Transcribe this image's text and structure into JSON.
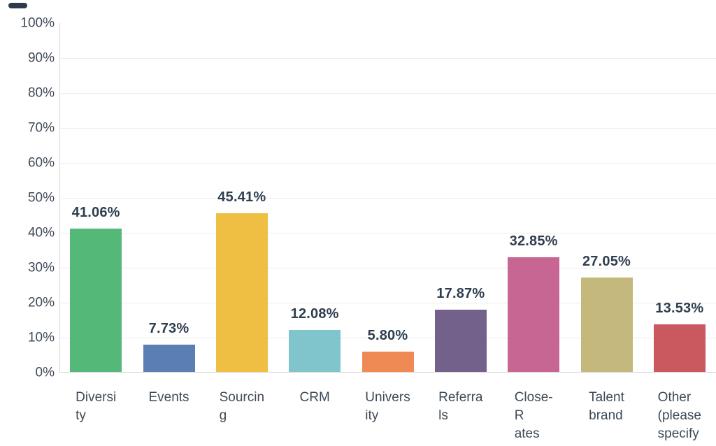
{
  "decoration": {
    "top_dash_color": "#2d3a4a"
  },
  "chart_data": {
    "type": "bar",
    "title": "",
    "xlabel": "",
    "ylabel": "",
    "ylim": [
      0,
      100
    ],
    "grid": "horizontal-light",
    "legend": "none",
    "categories": [
      "Diversity",
      "Events",
      "Sourcing",
      "CRM",
      "University",
      "Referrals",
      "Close-Rates",
      "Talent brand",
      "Other (please specify"
    ],
    "category_wrapped_lines": [
      [
        "Diversi",
        "ty"
      ],
      [
        "Events"
      ],
      [
        "Sourcin",
        "g"
      ],
      [
        "CRM"
      ],
      [
        "Univers",
        "ity"
      ],
      [
        "Referra",
        "ls"
      ],
      [
        "Close-",
        "R",
        "ates"
      ],
      [
        "Talent",
        "brand"
      ],
      [
        "Other",
        "(please",
        "specify"
      ]
    ],
    "values": [
      41.06,
      7.73,
      45.41,
      12.08,
      5.8,
      17.87,
      32.85,
      27.05,
      13.53
    ],
    "value_labels": [
      "41.06%",
      "7.73%",
      "45.41%",
      "12.08%",
      "5.80%",
      "17.87%",
      "32.85%",
      "27.05%",
      "13.53%"
    ],
    "bar_colors": [
      "#54b878",
      "#5b7eb5",
      "#efbf44",
      "#80c5cb",
      "#ef8a54",
      "#74618b",
      "#c76693",
      "#c5b87d",
      "#c9585f"
    ],
    "y_tick_labels": [
      "100%",
      "90%",
      "80%",
      "70%",
      "60%",
      "50%",
      "40%",
      "30%",
      "20%",
      "10%",
      "0%"
    ],
    "colors": {
      "axis_text": "#3e4a57",
      "value_label_text": "#2f3e4f",
      "gridline": "#ececec",
      "axis_line": "#d6d6d6",
      "background": "#ffffff"
    }
  }
}
